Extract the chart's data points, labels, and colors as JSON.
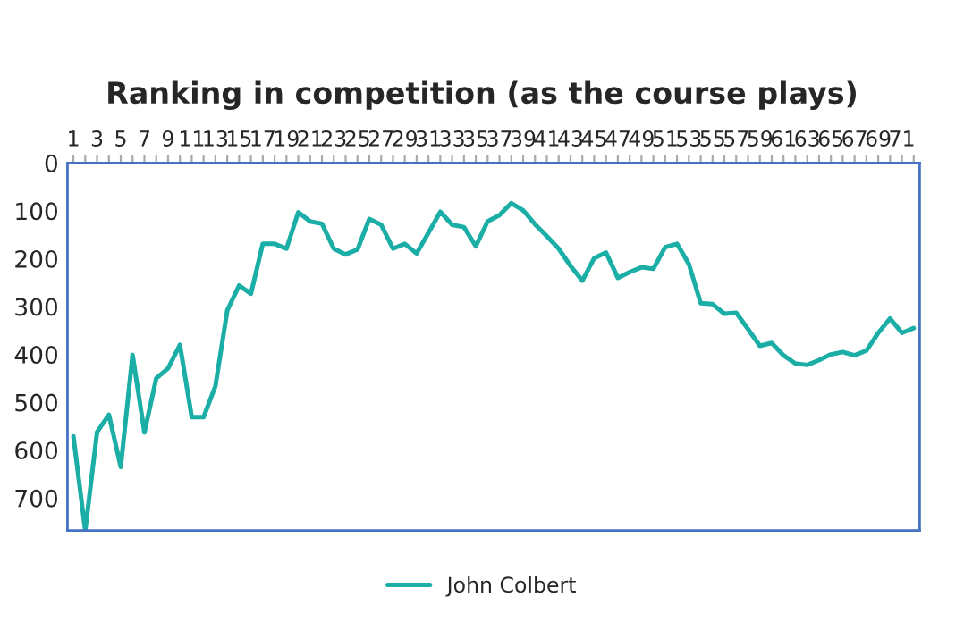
{
  "chart_data": {
    "type": "line",
    "title": "Ranking in competition (as the course plays)",
    "categories": [
      "1",
      null,
      "3",
      null,
      "5",
      null,
      "7",
      null,
      "9",
      null,
      "11",
      null,
      "13",
      null,
      "15",
      null,
      "17",
      null,
      "19",
      null,
      "21",
      null,
      "23",
      null,
      "25",
      null,
      "27",
      null,
      "29",
      null,
      "31",
      null,
      "33",
      null,
      "35",
      null,
      "37",
      null,
      "39",
      null,
      "41",
      null,
      "43",
      null,
      "45",
      null,
      "47",
      null,
      "49",
      null,
      "51",
      null,
      "53",
      null,
      "55",
      null,
      "57",
      null,
      "59",
      null,
      "61",
      null,
      "63",
      null,
      "65",
      null,
      "67",
      null,
      "69",
      null,
      "71",
      null
    ],
    "series": [
      {
        "name": "John Colbert",
        "color": "#1aaea6",
        "values": [
          571,
          768,
          562,
          526,
          635,
          401,
          563,
          450,
          429,
          380,
          531,
          531,
          466,
          308,
          256,
          273,
          169,
          169,
          179,
          103,
          122,
          127,
          179,
          191,
          181,
          117,
          129,
          179,
          169,
          189,
          146,
          102,
          129,
          134,
          174,
          122,
          109,
          84,
          99,
          128,
          153,
          179,
          215,
          246,
          199,
          187,
          240,
          228,
          218,
          221,
          176,
          169,
          211,
          293,
          295,
          315,
          313,
          347,
          382,
          376,
          402,
          419,
          422,
          412,
          400,
          395,
          402,
          392,
          355,
          325,
          355,
          345
        ]
      }
    ],
    "ylim": [
      768,
      0
    ],
    "yticks": [
      0,
      100,
      200,
      300,
      400,
      500,
      600,
      700
    ],
    "grid": false,
    "legend": "bottom",
    "marker": "none",
    "line_style": "solid"
  }
}
